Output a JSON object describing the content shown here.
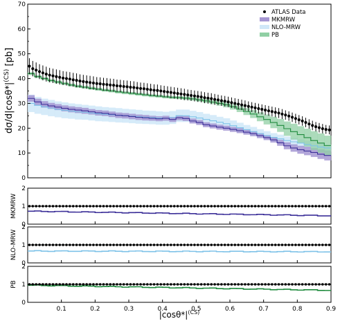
{
  "colors": {
    "data": "#000000",
    "MKMRW_line": "#3b2f98",
    "MKMRW_band": "#a596d2",
    "NLO_MRW_line": "#7ec2e8",
    "NLO_MRW_band": "#cfe7f8",
    "PB_line": "#1e8a3c",
    "PB_band": "#90cfa4"
  },
  "chart_data": [
    {
      "panel": "main",
      "type": "line",
      "ylabel": "dσ/d|cosθ*|^(CS) [pb]",
      "xlim": [
        0.0,
        0.9
      ],
      "ylim": [
        0,
        70
      ],
      "yticks": [
        "0",
        "10",
        "20",
        "30",
        "40",
        "50",
        "60",
        "70"
      ],
      "legend": {
        "placement": "top-right",
        "entries": [
          "ATLAS Data",
          "MKMRW",
          "NLO-MRW",
          "PB"
        ]
      },
      "data": {
        "name": "ATLAS Data",
        "x_start": 0.005,
        "x_step": 0.01,
        "y": [
          45.0,
          44.0,
          43.4,
          42.8,
          42.3,
          41.8,
          41.4,
          41.1,
          40.8,
          40.5,
          40.2,
          40.0,
          39.8,
          39.5,
          39.3,
          39.0,
          38.8,
          38.6,
          38.4,
          38.2,
          38.0,
          37.9,
          37.7,
          37.6,
          37.4,
          37.3,
          37.1,
          37.0,
          36.8,
          36.7,
          36.5,
          36.4,
          36.2,
          36.0,
          35.9,
          35.7,
          35.5,
          35.3,
          35.2,
          35.0,
          34.8,
          34.6,
          34.4,
          34.2,
          34.0,
          33.8,
          33.6,
          33.4,
          33.2,
          33.0,
          32.8,
          32.6,
          32.3,
          32.1,
          31.9,
          31.6,
          31.4,
          31.1,
          30.9,
          30.6,
          30.3,
          30.0,
          29.7,
          29.4,
          29.1,
          28.8,
          28.5,
          28.2,
          27.9,
          27.6,
          27.3,
          27.0,
          26.7,
          26.4,
          26.1,
          25.7,
          25.3,
          24.9,
          24.4,
          23.9,
          23.4,
          22.9,
          22.3,
          21.7,
          21.1,
          20.6,
          20.2,
          19.8,
          19.5,
          19.3
        ],
        "err": [
          3.2,
          3.1,
          3.1,
          3.0,
          3.0,
          3.0,
          2.9,
          2.9,
          2.9,
          2.9,
          2.8,
          2.8,
          2.8,
          2.8,
          2.8,
          2.7,
          2.7,
          2.7,
          2.7,
          2.7,
          2.6,
          2.6,
          2.6,
          2.6,
          2.6,
          2.6,
          2.5,
          2.5,
          2.5,
          2.5,
          2.5,
          2.5,
          2.4,
          2.4,
          2.4,
          2.4,
          2.4,
          2.4,
          2.4,
          2.3,
          2.3,
          2.3,
          2.3,
          2.3,
          2.3,
          2.3,
          2.3,
          2.2,
          2.2,
          2.2,
          2.2,
          2.2,
          2.2,
          2.2,
          2.2,
          2.2,
          2.1,
          2.1,
          2.1,
          2.1,
          2.1,
          2.1,
          2.1,
          2.1,
          2.1,
          2.0,
          2.0,
          2.0,
          2.0,
          2.0,
          2.0,
          2.0,
          2.0,
          2.0,
          2.0,
          2.0,
          1.9,
          1.9,
          1.9,
          1.9,
          1.9,
          1.9,
          1.9,
          1.9,
          1.9,
          1.9,
          1.9,
          1.9,
          1.8,
          1.8
        ]
      },
      "series": [
        {
          "name": "MKMRW",
          "x_edges_start": 0.0,
          "x_step": 0.02,
          "y": [
            32.0,
            30.6,
            29.6,
            29.0,
            28.5,
            28.0,
            27.6,
            27.3,
            27.0,
            26.6,
            26.2,
            26.0,
            25.6,
            25.2,
            25.0,
            24.7,
            24.4,
            24.2,
            24.0,
            23.8,
            24.0,
            23.5,
            24.2,
            23.9,
            22.9,
            22.3,
            21.4,
            20.9,
            20.4,
            20.0,
            19.5,
            19.0,
            18.4,
            17.8,
            17.0,
            16.2,
            15.3,
            14.1,
            12.9,
            12.0,
            11.3,
            10.8,
            10.2,
            9.5,
            9.0
          ],
          "err": [
            1.3,
            1.3,
            1.3,
            1.2,
            1.2,
            1.2,
            1.2,
            1.2,
            1.2,
            1.1,
            1.1,
            1.1,
            1.1,
            1.1,
            1.1,
            1.1,
            1.1,
            1.1,
            1.0,
            1.0,
            1.0,
            1.0,
            1.0,
            1.0,
            1.0,
            1.0,
            1.0,
            1.0,
            1.0,
            1.0,
            1.0,
            1.0,
            1.0,
            1.0,
            1.0,
            1.0,
            1.1,
            1.2,
            1.4,
            1.5,
            1.6,
            1.7,
            1.8,
            1.9,
            2.0
          ]
        },
        {
          "name": "NLO-MRW",
          "x_edges_start": 0.0,
          "x_step": 0.02,
          "y": [
            30.0,
            29.2,
            28.6,
            28.1,
            27.6,
            27.2,
            26.9,
            26.6,
            26.4,
            26.1,
            25.8,
            25.6,
            25.4,
            25.2,
            25.0,
            24.8,
            24.6,
            24.4,
            24.3,
            24.1,
            24.0,
            24.3,
            25.0,
            25.0,
            24.6,
            24.1,
            23.5,
            23.0,
            22.4,
            21.8,
            21.0,
            20.2,
            19.4,
            18.6,
            17.8,
            17.0,
            16.3,
            15.7,
            15.0,
            14.5,
            14.0,
            13.4,
            12.9,
            12.4,
            12.0
          ],
          "err": [
            3.5,
            3.4,
            3.3,
            3.3,
            3.2,
            3.2,
            3.1,
            3.1,
            3.0,
            3.0,
            3.0,
            2.9,
            2.9,
            2.9,
            2.8,
            2.8,
            2.8,
            2.7,
            2.7,
            2.7,
            2.6,
            2.6,
            2.5,
            2.5,
            2.4,
            2.4,
            2.3,
            2.3,
            2.2,
            2.2,
            2.1,
            2.0,
            1.9,
            1.9,
            1.8,
            1.8,
            1.7,
            1.7,
            1.6,
            1.6,
            1.5,
            1.5,
            1.5,
            1.4,
            1.4
          ]
        },
        {
          "name": "PB",
          "x_edges_start": 0.0,
          "x_step": 0.02,
          "y": [
            42.0,
            40.8,
            40.0,
            39.2,
            38.6,
            38.0,
            37.4,
            36.9,
            36.5,
            36.1,
            35.7,
            35.3,
            35.0,
            34.6,
            34.3,
            34.0,
            33.7,
            33.4,
            33.1,
            32.9,
            32.6,
            32.4,
            32.3,
            32.1,
            31.8,
            31.4,
            31.0,
            30.5,
            30.0,
            29.4,
            28.6,
            27.7,
            26.7,
            25.7,
            24.6,
            23.5,
            22.3,
            21.1,
            19.8,
            18.6,
            17.4,
            16.2,
            15.0,
            14.0,
            13.0
          ],
          "err": [
            0.6,
            0.6,
            0.6,
            0.6,
            0.6,
            0.6,
            0.6,
            0.6,
            0.6,
            0.6,
            0.6,
            0.6,
            0.6,
            0.6,
            0.6,
            0.6,
            0.6,
            0.6,
            0.6,
            0.6,
            0.6,
            0.6,
            0.6,
            0.7,
            0.7,
            0.7,
            0.8,
            0.8,
            0.9,
            1.0,
            1.1,
            1.2,
            1.4,
            1.6,
            1.8,
            2.0,
            2.3,
            2.6,
            2.9,
            3.2,
            3.4,
            3.6,
            3.8,
            3.9,
            4.0
          ]
        }
      ]
    },
    {
      "panel": "ratio-MKMRW",
      "type": "line",
      "ylabel": "MKMRW",
      "xlim": [
        0.0,
        0.9
      ],
      "ylim": [
        0,
        2
      ],
      "yticks": [
        "0",
        "1",
        "2"
      ],
      "reference": 1.0,
      "ratio_series": {
        "name": "MKMRW",
        "y_start": 0.72,
        "y_end": 0.47
      }
    },
    {
      "panel": "ratio-NLO-MRW",
      "type": "line",
      "ylabel": "NLO-MRW",
      "xlim": [
        0.0,
        0.9
      ],
      "ylim": [
        0,
        2
      ],
      "yticks": [
        "0",
        "1",
        "2"
      ],
      "reference": 1.0,
      "ratio_series": {
        "name": "NLO-MRW",
        "y_start": 0.66,
        "y_end": 0.62
      }
    },
    {
      "panel": "ratio-PB",
      "type": "line",
      "xlabel": "|cosθ*|^(CS)",
      "ylabel": "PB",
      "xlim": [
        0.0,
        0.9
      ],
      "ylim": [
        0,
        2
      ],
      "yticks": [
        "0",
        "1",
        "2"
      ],
      "xticks": [
        "0.1",
        "0.2",
        "0.3",
        "0.4",
        "0.5",
        "0.6",
        "0.7",
        "0.8",
        "0.9"
      ],
      "reference": 1.0,
      "ratio_series": {
        "name": "PB",
        "y_start": 0.95,
        "y_end": 0.67
      }
    }
  ]
}
